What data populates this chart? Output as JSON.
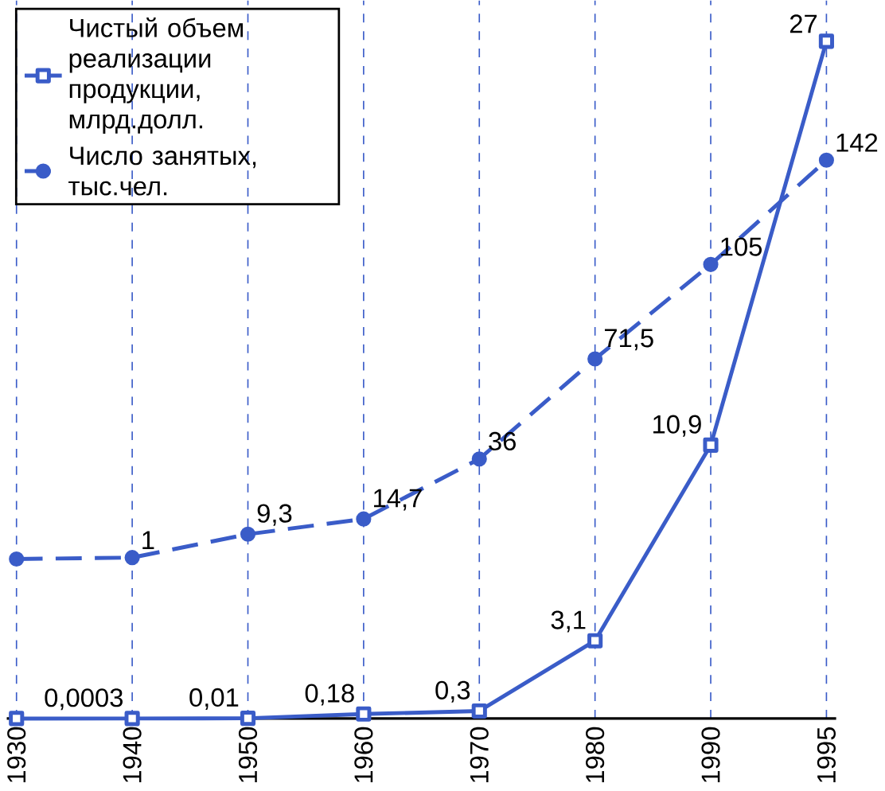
{
  "chart_data": {
    "type": "line",
    "categories": [
      "1930",
      "1940",
      "1950",
      "1960",
      "1970",
      "1980",
      "1990",
      "1995"
    ],
    "series": [
      {
        "name": "Чистый объем реализации продукции, млрд.долл.",
        "color": "#3a5cc8",
        "marker": "square",
        "line_style": "solid",
        "axis": "y",
        "values": [
          0,
          0.0003,
          0.01,
          0.18,
          0.3,
          3.1,
          10.9,
          27
        ],
        "value_labels": [
          null,
          "0,0003",
          "0,01",
          "0,18",
          "0,3",
          "3,1",
          "10,9",
          "27"
        ]
      },
      {
        "name": "Число занятых, тыс.чел.",
        "color": "#3a5cc8",
        "marker": "circle",
        "line_style": "dashed",
        "axis": "y2",
        "values": [
          0.5,
          1,
          9.3,
          14.7,
          36,
          71.5,
          105,
          142
        ],
        "value_labels": [
          null,
          "1",
          "9,3",
          "14,7",
          "36",
          "71,5",
          "105",
          "142"
        ]
      }
    ],
    "grid": true,
    "legend": "top left",
    "tick_labels": "x"
  }
}
